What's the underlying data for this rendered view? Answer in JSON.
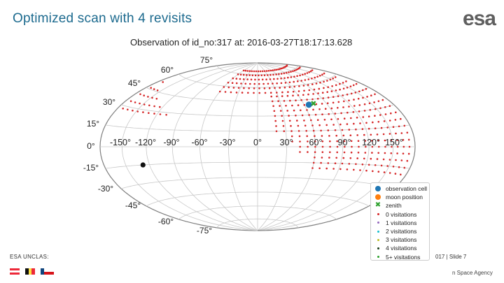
{
  "slide": {
    "title": "Optimized scan with 4 revisits",
    "logo_text": "esa",
    "footer_left": "ESA UNCLAS:",
    "footer_right": "017 | Slide  7",
    "agency_text": "n Space Agency"
  },
  "plot": {
    "title": "Observation of id_no:317 at: 2016-03-27T18:17:13.628",
    "projection": "aitoff/hammer all-sky",
    "lat_labels": [
      "75°",
      "60°",
      "45°",
      "30°",
      "15°",
      "0°",
      "-15°",
      "-30°",
      "-45°",
      "-60°",
      "-75°"
    ],
    "lon_labels": [
      "-150°",
      "-120°",
      "-90°",
      "-60°",
      "-30°",
      "0°",
      "30°",
      "60°",
      "90°",
      "120°",
      "150°"
    ]
  },
  "legend": {
    "items": [
      {
        "label": "observation cell",
        "color": "#1f77b4",
        "marker": "circle-large"
      },
      {
        "label": "moon position",
        "color": "#ff7f0e",
        "marker": "circle-large"
      },
      {
        "label": "zenith",
        "color": "#2ca02c",
        "marker": "cross"
      },
      {
        "label": "0 visitations",
        "color": "#d62728",
        "marker": "dot"
      },
      {
        "label": "1 visitations",
        "color": "#9467bd",
        "marker": "dot"
      },
      {
        "label": "2 visitations",
        "color": "#17becf",
        "marker": "dot"
      },
      {
        "label": "3 visitations",
        "color": "#bcbd22",
        "marker": "dot"
      },
      {
        "label": "4 visitations",
        "color": "#1a3d1a",
        "marker": "dot"
      },
      {
        "label": "5+ visitations",
        "color": "#2ca02c",
        "marker": "dot"
      }
    ]
  },
  "colors": {
    "title": "#1c6a8e",
    "grid": "#c8c8c8",
    "outline": "#7f7f7f",
    "unvisited_cells": "#d62728",
    "moon_marker": "#111111"
  },
  "flags": [
    {
      "name": "austria",
      "colors": [
        "#ed2939",
        "#ffffff",
        "#ed2939"
      ],
      "direction": "horizontal"
    },
    {
      "name": "belgium",
      "colors": [
        "#111111",
        "#fae042",
        "#ed2939"
      ],
      "direction": "vertical"
    },
    {
      "name": "czech",
      "colors": [
        "#ffffff",
        "#d7141a"
      ],
      "direction": "horizontal"
    }
  ]
}
